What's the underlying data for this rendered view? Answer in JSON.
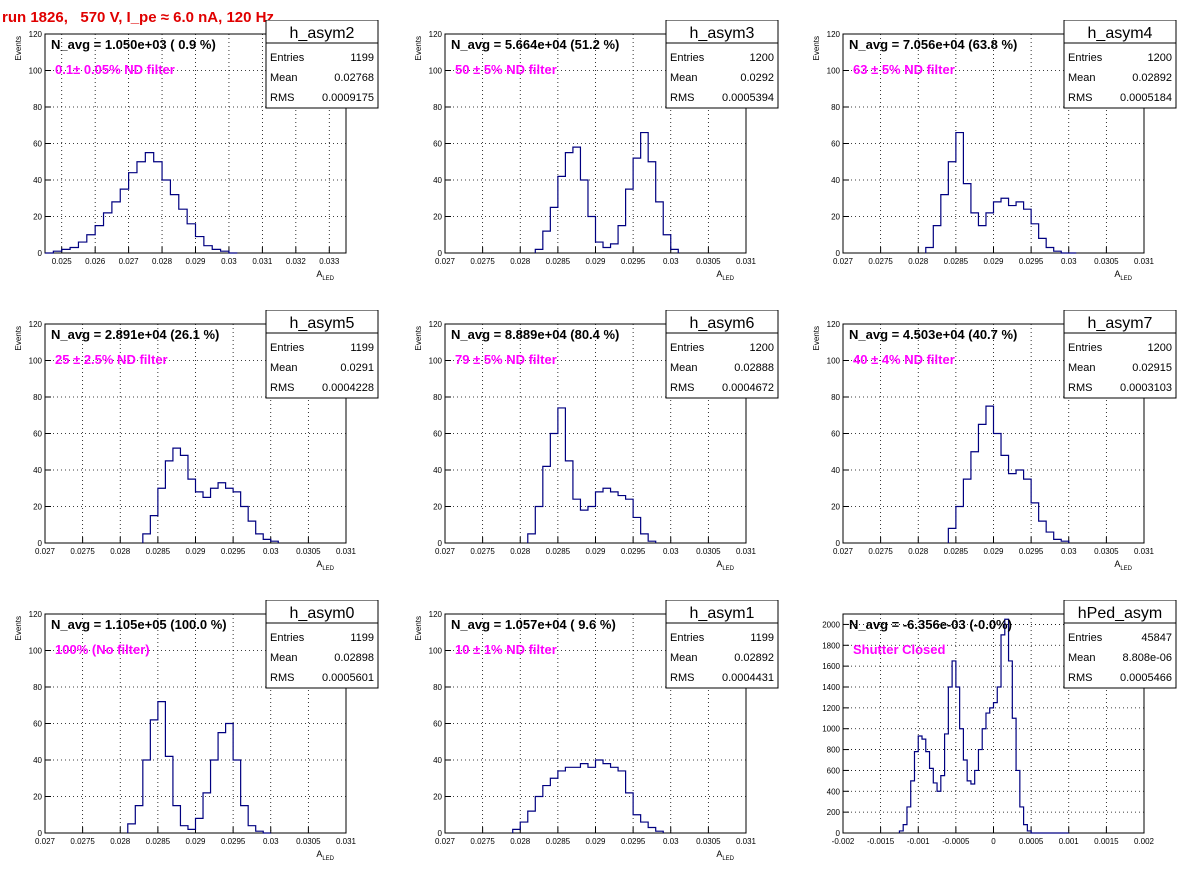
{
  "run_title": "run 1826,   570 V, I_pe ≈ 6.0 nA, 120 Hz",
  "colors": {
    "title": "#e00000",
    "annotation": "#ff00ff",
    "histogram": "#000080",
    "grid": "#000000"
  },
  "chart_data": [
    {
      "type": "bar",
      "hist_name": "h_asym2",
      "navg": "N_avg = 1.050e+03 ( 0.9 %)",
      "annotation": "0.1± 0.05% ND filter",
      "stats": {
        "entries_label": "Entries",
        "entries": "1199",
        "mean_label": "Mean",
        "mean": "0.02768",
        "rms_label": "RMS",
        "rms": "0.0009175"
      },
      "ylabel": "Events",
      "xlabel": "A",
      "xlabel_sub": "LED",
      "xlim": [
        0.0245,
        0.0335
      ],
      "ylim": [
        0,
        120
      ],
      "xticks": [
        "0.025",
        "0.026",
        "0.027",
        "0.028",
        "0.029",
        "0.03",
        "0.031",
        "0.032",
        "0.033"
      ],
      "xtick_values": [
        0.025,
        0.026,
        0.027,
        0.028,
        0.029,
        0.03,
        0.031,
        0.032,
        0.033
      ],
      "yticks": [
        "0",
        "20",
        "40",
        "60",
        "80",
        "100",
        "120"
      ],
      "ytick_values": [
        0,
        20,
        40,
        60,
        80,
        100,
        120
      ],
      "bin_edges": [
        0.0245,
        0.02475,
        0.025,
        0.02525,
        0.0255,
        0.02575,
        0.026,
        0.02625,
        0.0265,
        0.02675,
        0.027,
        0.02725,
        0.0275,
        0.02775,
        0.028,
        0.02825,
        0.0285,
        0.02875,
        0.029,
        0.02925,
        0.0295,
        0.02975,
        0.03,
        0.03025
      ],
      "counts": [
        0,
        1,
        2,
        3,
        6,
        10,
        15,
        22,
        28,
        35,
        44,
        50,
        55,
        50,
        40,
        32,
        24,
        16,
        9,
        4,
        2,
        1,
        0
      ]
    },
    {
      "type": "bar",
      "hist_name": "h_asym3",
      "navg": "N_avg = 5.664e+04 (51.2 %)",
      "annotation": "50 ± 5% ND filter",
      "stats": {
        "entries_label": "Entries",
        "entries": "1200",
        "mean_label": "Mean",
        "mean": "0.0292",
        "rms_label": "RMS",
        "rms": "0.0005394"
      },
      "ylabel": "Events",
      "xlabel": "A",
      "xlabel_sub": "LED",
      "xlim": [
        0.027,
        0.031
      ],
      "ylim": [
        0,
        120
      ],
      "xticks": [
        "0.027",
        "0.0275",
        "0.028",
        "0.0285",
        "0.029",
        "0.0295",
        "0.03",
        "0.0305",
        "0.031"
      ],
      "xtick_values": [
        0.027,
        0.0275,
        0.028,
        0.0285,
        0.029,
        0.0295,
        0.03,
        0.0305,
        0.031
      ],
      "yticks": [
        "0",
        "20",
        "40",
        "60",
        "80",
        "100",
        "120"
      ],
      "ytick_values": [
        0,
        20,
        40,
        60,
        80,
        100,
        120
      ],
      "bin_edges": [
        0.0282,
        0.0283,
        0.0284,
        0.0285,
        0.0286,
        0.0287,
        0.0288,
        0.0289,
        0.029,
        0.0291,
        0.0292,
        0.0293,
        0.0294,
        0.0295,
        0.0296,
        0.0297,
        0.0298,
        0.0299,
        0.03,
        0.0301
      ],
      "counts": [
        2,
        12,
        25,
        42,
        55,
        58,
        40,
        20,
        6,
        3,
        5,
        15,
        35,
        52,
        66,
        50,
        28,
        10,
        2
      ]
    },
    {
      "type": "bar",
      "hist_name": "h_asym4",
      "navg": "N_avg = 7.056e+04 (63.8 %)",
      "annotation": "63 ± 5% ND filter",
      "stats": {
        "entries_label": "Entries",
        "entries": "1200",
        "mean_label": "Mean",
        "mean": "0.02892",
        "rms_label": "RMS",
        "rms": "0.0005184"
      },
      "ylabel": "Events",
      "xlabel": "A",
      "xlabel_sub": "LED",
      "xlim": [
        0.027,
        0.031
      ],
      "ylim": [
        0,
        120
      ],
      "xticks": [
        "0.027",
        "0.0275",
        "0.028",
        "0.0285",
        "0.029",
        "0.0295",
        "0.03",
        "0.0305",
        "0.031"
      ],
      "xtick_values": [
        0.027,
        0.0275,
        0.028,
        0.0285,
        0.029,
        0.0295,
        0.03,
        0.0305,
        0.031
      ],
      "yticks": [
        "0",
        "20",
        "40",
        "60",
        "80",
        "100",
        "120"
      ],
      "ytick_values": [
        0,
        20,
        40,
        60,
        80,
        100,
        120
      ],
      "bin_edges": [
        0.0281,
        0.0282,
        0.0283,
        0.0284,
        0.0285,
        0.0286,
        0.0287,
        0.0288,
        0.0289,
        0.029,
        0.0291,
        0.0292,
        0.0293,
        0.0294,
        0.0295,
        0.0296,
        0.0297,
        0.0298,
        0.0299,
        0.03,
        0.0301
      ],
      "counts": [
        3,
        15,
        32,
        50,
        66,
        38,
        22,
        15,
        22,
        28,
        30,
        26,
        28,
        24,
        16,
        8,
        3,
        1,
        0,
        0
      ]
    },
    {
      "type": "bar",
      "hist_name": "h_asym5",
      "navg": "N_avg = 2.891e+04 (26.1 %)",
      "annotation": "25 ± 2.5% ND filter",
      "stats": {
        "entries_label": "Entries",
        "entries": "1199",
        "mean_label": "Mean",
        "mean": "0.0291",
        "rms_label": "RMS",
        "rms": "0.0004228"
      },
      "ylabel": "Events",
      "xlabel": "A",
      "xlabel_sub": "LED",
      "xlim": [
        0.027,
        0.031
      ],
      "ylim": [
        0,
        120
      ],
      "xticks": [
        "0.027",
        "0.0275",
        "0.028",
        "0.0285",
        "0.029",
        "0.0295",
        "0.03",
        "0.0305",
        "0.031"
      ],
      "xtick_values": [
        0.027,
        0.0275,
        0.028,
        0.0285,
        0.029,
        0.0295,
        0.03,
        0.0305,
        0.031
      ],
      "yticks": [
        "0",
        "20",
        "40",
        "60",
        "80",
        "100",
        "120"
      ],
      "ytick_values": [
        0,
        20,
        40,
        60,
        80,
        100,
        120
      ],
      "bin_edges": [
        0.0283,
        0.0284,
        0.0285,
        0.0286,
        0.0287,
        0.0288,
        0.0289,
        0.029,
        0.0291,
        0.0292,
        0.0293,
        0.0294,
        0.0295,
        0.0296,
        0.0297,
        0.0298,
        0.0299,
        0.03,
        0.0301
      ],
      "counts": [
        5,
        15,
        30,
        45,
        52,
        48,
        35,
        28,
        25,
        30,
        33,
        30,
        28,
        20,
        12,
        5,
        2,
        1
      ]
    },
    {
      "type": "bar",
      "hist_name": "h_asym6",
      "navg": "N_avg = 8.889e+04 (80.4 %)",
      "annotation": "79 ± 5% ND filter",
      "stats": {
        "entries_label": "Entries",
        "entries": "1200",
        "mean_label": "Mean",
        "mean": "0.02888",
        "rms_label": "RMS",
        "rms": "0.0004672"
      },
      "ylabel": "Events",
      "xlabel": "A",
      "xlabel_sub": "LED",
      "xlim": [
        0.027,
        0.031
      ],
      "ylim": [
        0,
        120
      ],
      "xticks": [
        "0.027",
        "0.0275",
        "0.028",
        "0.0285",
        "0.029",
        "0.0295",
        "0.03",
        "0.0305",
        "0.031"
      ],
      "xtick_values": [
        0.027,
        0.0275,
        0.028,
        0.0285,
        0.029,
        0.0295,
        0.03,
        0.0305,
        0.031
      ],
      "yticks": [
        "0",
        "20",
        "40",
        "60",
        "80",
        "100",
        "120"
      ],
      "ytick_values": [
        0,
        20,
        40,
        60,
        80,
        100,
        120
      ],
      "bin_edges": [
        0.0281,
        0.0282,
        0.0283,
        0.0284,
        0.0285,
        0.0286,
        0.0287,
        0.0288,
        0.0289,
        0.029,
        0.0291,
        0.0292,
        0.0293,
        0.0294,
        0.0295,
        0.0296,
        0.0297,
        0.0298
      ],
      "counts": [
        5,
        20,
        42,
        60,
        74,
        45,
        24,
        18,
        20,
        28,
        30,
        28,
        26,
        24,
        14,
        5,
        1
      ]
    },
    {
      "type": "bar",
      "hist_name": "h_asym7",
      "navg": "N_avg = 4.503e+04 (40.7 %)",
      "annotation": "40 ± 4% ND filter",
      "stats": {
        "entries_label": "Entries",
        "entries": "1200",
        "mean_label": "Mean",
        "mean": "0.02915",
        "rms_label": "RMS",
        "rms": "0.0003103"
      },
      "ylabel": "Events",
      "xlabel": "A",
      "xlabel_sub": "LED",
      "xlim": [
        0.027,
        0.031
      ],
      "ylim": [
        0,
        120
      ],
      "xticks": [
        "0.027",
        "0.0275",
        "0.028",
        "0.0285",
        "0.029",
        "0.0295",
        "0.03",
        "0.0305",
        "0.031"
      ],
      "xtick_values": [
        0.027,
        0.0275,
        0.028,
        0.0285,
        0.029,
        0.0295,
        0.03,
        0.0305,
        0.031
      ],
      "yticks": [
        "0",
        "20",
        "40",
        "60",
        "80",
        "100",
        "120"
      ],
      "ytick_values": [
        0,
        20,
        40,
        60,
        80,
        100,
        120
      ],
      "bin_edges": [
        0.0284,
        0.0285,
        0.0286,
        0.0287,
        0.0288,
        0.0289,
        0.029,
        0.0291,
        0.0292,
        0.0293,
        0.0294,
        0.0295,
        0.0296,
        0.0297,
        0.0298,
        0.0299,
        0.03
      ],
      "counts": [
        8,
        20,
        35,
        50,
        65,
        75,
        60,
        48,
        38,
        40,
        35,
        22,
        12,
        6,
        2,
        1
      ]
    },
    {
      "type": "bar",
      "hist_name": "h_asym0",
      "navg": "N_avg = 1.105e+05 (100.0 %)",
      "annotation": "100% (No filter)",
      "stats": {
        "entries_label": "Entries",
        "entries": "1199",
        "mean_label": "Mean",
        "mean": "0.02898",
        "rms_label": "RMS",
        "rms": "0.0005601"
      },
      "ylabel": "Events",
      "xlabel": "A",
      "xlabel_sub": "LED",
      "xlim": [
        0.027,
        0.031
      ],
      "ylim": [
        0,
        120
      ],
      "xticks": [
        "0.027",
        "0.0275",
        "0.028",
        "0.0285",
        "0.029",
        "0.0295",
        "0.03",
        "0.0305",
        "0.031"
      ],
      "xtick_values": [
        0.027,
        0.0275,
        0.028,
        0.0285,
        0.029,
        0.0295,
        0.03,
        0.0305,
        0.031
      ],
      "yticks": [
        "0",
        "20",
        "40",
        "60",
        "80",
        "100",
        "120"
      ],
      "ytick_values": [
        0,
        20,
        40,
        60,
        80,
        100,
        120
      ],
      "bin_edges": [
        0.0281,
        0.0282,
        0.0283,
        0.0284,
        0.0285,
        0.0286,
        0.0287,
        0.0288,
        0.0289,
        0.029,
        0.0291,
        0.0292,
        0.0293,
        0.0294,
        0.0295,
        0.0296,
        0.0297,
        0.0298,
        0.0299,
        0.03
      ],
      "counts": [
        5,
        15,
        40,
        62,
        72,
        42,
        15,
        4,
        2,
        8,
        22,
        40,
        55,
        60,
        40,
        15,
        4,
        1,
        0
      ]
    },
    {
      "type": "bar",
      "hist_name": "h_asym1",
      "navg": "N_avg = 1.057e+04 ( 9.6 %)",
      "annotation": "10 ± 1% ND filter",
      "stats": {
        "entries_label": "Entries",
        "entries": "1199",
        "mean_label": "Mean",
        "mean": "0.02892",
        "rms_label": "RMS",
        "rms": "0.0004431"
      },
      "ylabel": "Events",
      "xlabel": "A",
      "xlabel_sub": "LED",
      "xlim": [
        0.027,
        0.031
      ],
      "ylim": [
        0,
        120
      ],
      "xticks": [
        "0.027",
        "0.0275",
        "0.028",
        "0.0285",
        "0.029",
        "0.0295",
        "0.03",
        "0.0305",
        "0.031"
      ],
      "xtick_values": [
        0.027,
        0.0275,
        0.028,
        0.0285,
        0.029,
        0.0295,
        0.03,
        0.0305,
        0.031
      ],
      "yticks": [
        "0",
        "20",
        "40",
        "60",
        "80",
        "100",
        "120"
      ],
      "ytick_values": [
        0,
        20,
        40,
        60,
        80,
        100,
        120
      ],
      "bin_edges": [
        0.0279,
        0.028,
        0.0281,
        0.0282,
        0.0283,
        0.0284,
        0.0285,
        0.0286,
        0.0287,
        0.0288,
        0.0289,
        0.029,
        0.0291,
        0.0292,
        0.0293,
        0.0294,
        0.0295,
        0.0296,
        0.0297,
        0.0298,
        0.0299
      ],
      "counts": [
        2,
        6,
        12,
        20,
        26,
        30,
        34,
        36,
        36,
        38,
        36,
        40,
        38,
        36,
        34,
        22,
        10,
        6,
        3,
        1
      ]
    },
    {
      "type": "bar",
      "hist_name": "hPed_asym",
      "navg": "N_avg = -6.356e-03 (-0.0%)",
      "annotation": "Shutter Closed",
      "stats": {
        "entries_label": "Entries",
        "entries": "45847",
        "mean_label": "Mean",
        "mean": "8.808e-06",
        "rms_label": "RMS",
        "rms": "0.0005466"
      },
      "ylabel": "",
      "xlabel": "",
      "xlabel_sub": "",
      "xlim": [
        -0.002,
        0.002
      ],
      "ylim": [
        0,
        2100
      ],
      "xticks": [
        "-0.002",
        "-0.0015",
        "-0.001",
        "-0.0005",
        "0",
        "0.0005",
        "0.001",
        "0.0015",
        "0.002"
      ],
      "xtick_values": [
        -0.002,
        -0.0015,
        -0.001,
        -0.0005,
        0,
        0.0005,
        0.001,
        0.0015,
        0.002
      ],
      "yticks": [
        "0",
        "200",
        "400",
        "600",
        "800",
        "1000",
        "1200",
        "1400",
        "1600",
        "1800",
        "2000"
      ],
      "ytick_values": [
        0,
        200,
        400,
        600,
        800,
        1000,
        1200,
        1400,
        1600,
        1800,
        2000
      ],
      "bin_edges": [
        -0.00125,
        -0.0012,
        -0.00115,
        -0.0011,
        -0.00105,
        -0.001,
        -0.00095,
        -0.0009,
        -0.00085,
        -0.0008,
        -0.00075,
        -0.0007,
        -0.00065,
        -0.0006,
        -0.00055,
        -0.0005,
        -0.00045,
        -0.0004,
        -0.00035,
        -0.0003,
        -0.00025,
        -0.0002,
        -0.00015,
        -0.0001,
        -5e-05,
        0,
        5e-05,
        0.0001,
        0.00015,
        0.0002,
        0.00025,
        0.0003,
        0.00035,
        0.0004,
        0.00045,
        0.0005,
        0.00055,
        0.0006,
        0.00065,
        0.0007,
        0.00075,
        0.0008,
        0.00085,
        0.0009,
        0.00095,
        0.001
      ],
      "counts": [
        20,
        80,
        250,
        500,
        780,
        930,
        900,
        780,
        620,
        480,
        400,
        550,
        950,
        1400,
        1650,
        1400,
        1000,
        700,
        500,
        470,
        600,
        800,
        1000,
        1150,
        1200,
        1250,
        1400,
        1900,
        2050,
        1650,
        1100,
        600,
        250,
        80,
        20,
        0,
        0,
        0,
        0,
        0,
        0,
        0,
        0,
        0,
        0
      ]
    }
  ]
}
